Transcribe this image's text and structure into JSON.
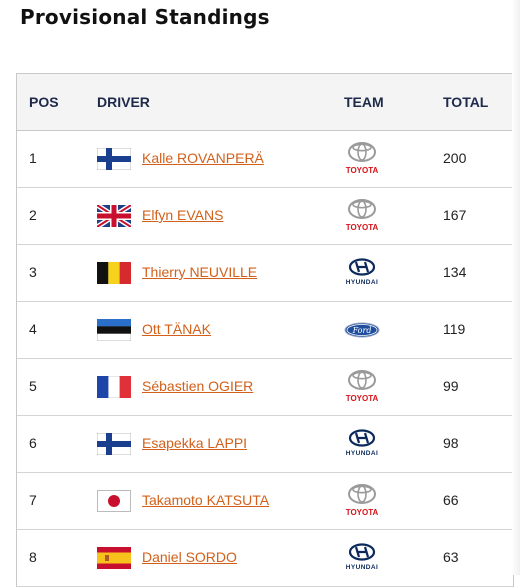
{
  "page": {
    "title": "Provisional Standings"
  },
  "table": {
    "headers": {
      "pos": "POS",
      "driver": "DRIVER",
      "team": "TEAM",
      "total": "TOTAL"
    },
    "rows": [
      {
        "pos": "1",
        "flag": "finland-flag-icon",
        "driver": "Kalle ROVANPERÄ",
        "team_logo": "toyota-logo-icon",
        "team_text": "TOYOTA",
        "total": "200"
      },
      {
        "pos": "2",
        "flag": "uk-flag-icon",
        "driver": "Elfyn EVANS",
        "team_logo": "toyota-logo-icon",
        "team_text": "TOYOTA",
        "total": "167"
      },
      {
        "pos": "3",
        "flag": "belgium-flag-icon",
        "driver": "Thierry NEUVILLE",
        "team_logo": "hyundai-logo-icon",
        "team_text": "HYUNDAI",
        "total": "134"
      },
      {
        "pos": "4",
        "flag": "estonia-flag-icon",
        "driver": "Ott TÄNAK",
        "team_logo": "ford-logo-icon",
        "team_text": "Ford",
        "total": "119"
      },
      {
        "pos": "5",
        "flag": "france-flag-icon",
        "driver": "Sébastien OGIER",
        "team_logo": "toyota-logo-icon",
        "team_text": "TOYOTA",
        "total": "99"
      },
      {
        "pos": "6",
        "flag": "finland-flag-icon",
        "driver": "Esapekka LAPPI",
        "team_logo": "hyundai-logo-icon",
        "team_text": "HYUNDAI",
        "total": "98"
      },
      {
        "pos": "7",
        "flag": "japan-flag-icon",
        "driver": "Takamoto KATSUTA",
        "team_logo": "toyota-logo-icon",
        "team_text": "TOYOTA",
        "total": "66"
      },
      {
        "pos": "8",
        "flag": "spain-flag-icon",
        "driver": "Daniel SORDO",
        "team_logo": "hyundai-logo-icon",
        "team_text": "HYUNDAI",
        "total": "63"
      }
    ]
  },
  "colors": {
    "driver_link": "#d2601a",
    "header_text": "#1e2a4a",
    "header_bg": "#f4f4f4",
    "toyota_red": "#d7141a",
    "hyundai_navy": "#0b2a5b",
    "ford_blue": "#1f4e9e"
  }
}
